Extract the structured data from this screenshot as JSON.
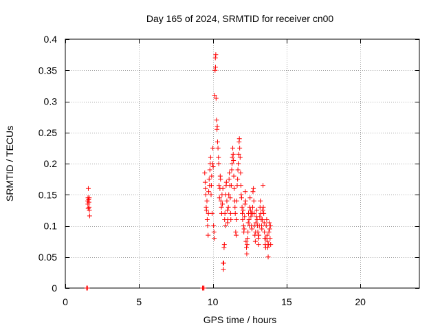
{
  "chart_data": {
    "type": "scatter",
    "title": "Day 165 of 2024, SRMTID for receiver cn00",
    "xlabel": "GPS time / hours",
    "ylabel": "SRMTID / TECUs",
    "xlim": [
      0,
      24
    ],
    "ylim": [
      0,
      0.4
    ],
    "xticks": [
      0,
      5,
      10,
      15,
      20
    ],
    "yticks": [
      0,
      0.05,
      0.1,
      0.15,
      0.2,
      0.25,
      0.3,
      0.35,
      0.4
    ],
    "grid": true,
    "marker": "+",
    "color": "#ff0000",
    "series": [
      {
        "name": "cn00",
        "points": [
          [
            1.45,
            0.0
          ],
          [
            1.48,
            0.0
          ],
          [
            1.5,
            0.0
          ],
          [
            1.52,
            0.14
          ],
          [
            1.53,
            0.135
          ],
          [
            1.54,
            0.145
          ],
          [
            1.55,
            0.128
          ],
          [
            1.56,
            0.16
          ],
          [
            1.58,
            0.142
          ],
          [
            1.6,
            0.138
          ],
          [
            1.61,
            0.13
          ],
          [
            1.62,
            0.145
          ],
          [
            1.63,
            0.125
          ],
          [
            1.65,
            0.116
          ],
          [
            9.3,
            0.0
          ],
          [
            9.35,
            0.0
          ],
          [
            9.4,
            0.0
          ],
          [
            9.45,
            0.185
          ],
          [
            9.48,
            0.17
          ],
          [
            9.5,
            0.16
          ],
          [
            9.52,
            0.15
          ],
          [
            9.55,
            0.13
          ],
          [
            9.57,
            0.125
          ],
          [
            9.6,
            0.14
          ],
          [
            9.62,
            0.11
          ],
          [
            9.65,
            0.1
          ],
          [
            9.68,
            0.085
          ],
          [
            9.7,
            0.12
          ],
          [
            9.72,
            0.155
          ],
          [
            9.75,
            0.175
          ],
          [
            9.78,
            0.165
          ],
          [
            9.8,
            0.19
          ],
          [
            9.82,
            0.2
          ],
          [
            9.85,
            0.21
          ],
          [
            9.88,
            0.15
          ],
          [
            9.9,
            0.165
          ],
          [
            9.92,
            0.18
          ],
          [
            9.95,
            0.12
          ],
          [
            9.98,
            0.2
          ],
          [
            10.0,
            0.225
          ],
          [
            10.02,
            0.195
          ],
          [
            10.05,
            0.1
          ],
          [
            10.08,
            0.09
          ],
          [
            10.1,
            0.08
          ],
          [
            10.12,
            0.31
          ],
          [
            10.15,
            0.35
          ],
          [
            10.17,
            0.37
          ],
          [
            10.18,
            0.355
          ],
          [
            10.2,
            0.375
          ],
          [
            10.22,
            0.305
          ],
          [
            10.25,
            0.27
          ],
          [
            10.28,
            0.255
          ],
          [
            10.3,
            0.26
          ],
          [
            10.32,
            0.235
          ],
          [
            10.35,
            0.225
          ],
          [
            10.38,
            0.21
          ],
          [
            10.4,
            0.2
          ],
          [
            10.42,
            0.165
          ],
          [
            10.45,
            0.145
          ],
          [
            10.48,
            0.16
          ],
          [
            10.5,
            0.18
          ],
          [
            10.52,
            0.175
          ],
          [
            10.55,
            0.14
          ],
          [
            10.58,
            0.13
          ],
          [
            10.6,
            0.12
          ],
          [
            10.62,
            0.15
          ],
          [
            10.65,
            0.135
          ],
          [
            10.68,
            0.16
          ],
          [
            10.7,
            0.04
          ],
          [
            10.72,
            0.03
          ],
          [
            10.74,
            0.04
          ],
          [
            10.76,
            0.065
          ],
          [
            10.78,
            0.07
          ],
          [
            10.8,
            0.11
          ],
          [
            10.82,
            0.12
          ],
          [
            10.85,
            0.1
          ],
          [
            10.88,
            0.15
          ],
          [
            10.9,
            0.165
          ],
          [
            10.92,
            0.17
          ],
          [
            10.95,
            0.14
          ],
          [
            10.98,
            0.125
          ],
          [
            11.0,
            0.105
          ],
          [
            11.02,
            0.11
          ],
          [
            11.05,
            0.13
          ],
          [
            11.08,
            0.15
          ],
          [
            11.1,
            0.175
          ],
          [
            11.12,
            0.185
          ],
          [
            11.15,
            0.165
          ],
          [
            11.18,
            0.145
          ],
          [
            11.2,
            0.12
          ],
          [
            11.22,
            0.11
          ],
          [
            11.25,
            0.165
          ],
          [
            11.28,
            0.19
          ],
          [
            11.3,
            0.2
          ],
          [
            11.32,
            0.21
          ],
          [
            11.35,
            0.225
          ],
          [
            11.38,
            0.215
          ],
          [
            11.4,
            0.205
          ],
          [
            11.42,
            0.18
          ],
          [
            11.45,
            0.16
          ],
          [
            11.48,
            0.14
          ],
          [
            11.5,
            0.13
          ],
          [
            11.52,
            0.12
          ],
          [
            11.55,
            0.09
          ],
          [
            11.58,
            0.085
          ],
          [
            11.6,
            0.11
          ],
          [
            11.62,
            0.14
          ],
          [
            11.65,
            0.165
          ],
          [
            11.68,
            0.175
          ],
          [
            11.7,
            0.19
          ],
          [
            11.72,
            0.2
          ],
          [
            11.75,
            0.215
          ],
          [
            11.78,
            0.235
          ],
          [
            11.8,
            0.24
          ],
          [
            11.82,
            0.225
          ],
          [
            11.85,
            0.21
          ],
          [
            11.88,
            0.185
          ],
          [
            11.9,
            0.165
          ],
          [
            11.92,
            0.15
          ],
          [
            11.95,
            0.145
          ],
          [
            11.98,
            0.13
          ],
          [
            12.0,
            0.12
          ],
          [
            12.02,
            0.11
          ],
          [
            12.05,
            0.125
          ],
          [
            12.08,
            0.1
          ],
          [
            12.1,
            0.09
          ],
          [
            12.12,
            0.095
          ],
          [
            12.15,
            0.115
          ],
          [
            12.18,
            0.135
          ],
          [
            12.2,
            0.155
          ],
          [
            12.22,
            0.14
          ],
          [
            12.25,
            0.075
          ],
          [
            12.28,
            0.065
          ],
          [
            12.3,
            0.055
          ],
          [
            12.32,
            0.07
          ],
          [
            12.35,
            0.08
          ],
          [
            12.38,
            0.09
          ],
          [
            12.4,
            0.105
          ],
          [
            12.42,
            0.12
          ],
          [
            12.45,
            0.11
          ],
          [
            12.48,
            0.1
          ],
          [
            12.5,
            0.13
          ],
          [
            12.52,
            0.145
          ],
          [
            12.55,
            0.125
          ],
          [
            12.58,
            0.115
          ],
          [
            12.6,
            0.12
          ],
          [
            12.62,
            0.1
          ],
          [
            12.65,
            0.095
          ],
          [
            12.68,
            0.12
          ],
          [
            12.7,
            0.13
          ],
          [
            12.72,
            0.155
          ],
          [
            12.75,
            0.16
          ],
          [
            12.78,
            0.14
          ],
          [
            12.8,
            0.12
          ],
          [
            12.82,
            0.1
          ],
          [
            12.85,
            0.085
          ],
          [
            12.88,
            0.075
          ],
          [
            12.9,
            0.09
          ],
          [
            12.92,
            0.105
          ],
          [
            12.95,
            0.115
          ],
          [
            12.98,
            0.125
          ],
          [
            13.0,
            0.11
          ],
          [
            13.02,
            0.1
          ],
          [
            13.05,
            0.09
          ],
          [
            13.08,
            0.08
          ],
          [
            13.1,
            0.07
          ],
          [
            13.12,
            0.085
          ],
          [
            13.15,
            0.1
          ],
          [
            13.18,
            0.115
          ],
          [
            13.2,
            0.13
          ],
          [
            13.22,
            0.14
          ],
          [
            13.25,
            0.12
          ],
          [
            13.28,
            0.11
          ],
          [
            13.3,
            0.1
          ],
          [
            13.32,
            0.095
          ],
          [
            13.35,
            0.11
          ],
          [
            13.38,
            0.125
          ],
          [
            13.4,
            0.165
          ],
          [
            13.42,
            0.13
          ],
          [
            13.45,
            0.12
          ],
          [
            13.48,
            0.105
          ],
          [
            13.5,
            0.09
          ],
          [
            13.52,
            0.08
          ],
          [
            13.55,
            0.07
          ],
          [
            13.58,
            0.065
          ],
          [
            13.6,
            0.08
          ],
          [
            13.62,
            0.1
          ],
          [
            13.65,
            0.11
          ],
          [
            13.68,
            0.085
          ],
          [
            13.7,
            0.075
          ],
          [
            13.72,
            0.065
          ],
          [
            13.75,
            0.05
          ],
          [
            13.78,
            0.07
          ],
          [
            13.8,
            0.09
          ],
          [
            13.82,
            0.105
          ],
          [
            13.85,
            0.095
          ],
          [
            13.88,
            0.08
          ],
          [
            13.9,
            0.1
          ],
          [
            13.92,
            0.07
          ]
        ]
      }
    ]
  }
}
